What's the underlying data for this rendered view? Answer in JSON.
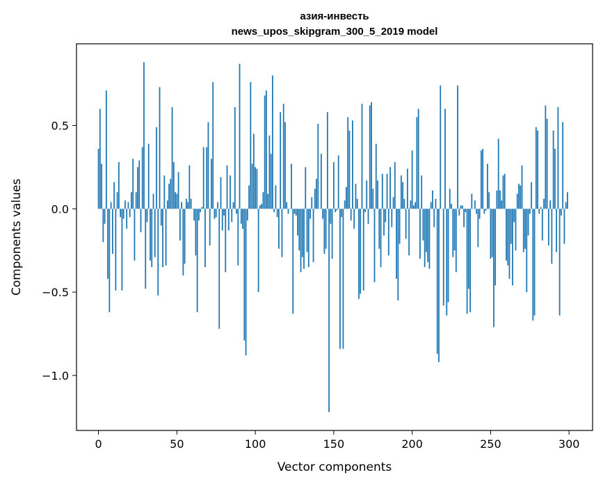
{
  "chart_data": {
    "type": "bar",
    "title": "азия-инвесть",
    "subtitle": "news_upos_skipgram_300_5_2019 model",
    "xlabel": "Vector components",
    "ylabel": "Components values",
    "xlim": [
      -14,
      315
    ],
    "ylim": [
      -1.33,
      0.99
    ],
    "x_ticks": [
      0,
      50,
      100,
      150,
      200,
      250,
      300
    ],
    "x_tick_labels": [
      "0",
      "50",
      "100",
      "150",
      "200",
      "250",
      "300"
    ],
    "y_ticks": [
      0.5,
      0.0,
      -0.5,
      -1.0
    ],
    "y_tick_labels": [
      "0.5",
      "0.0",
      "−0.5",
      "−1.0"
    ],
    "grid": false,
    "legend": "none",
    "bar_color": "#1f77b4",
    "series": [
      {
        "values": [
          0.36,
          0.6,
          0.27,
          -0.2,
          -0.09,
          0.71,
          -0.42,
          -0.62,
          0.04,
          -0.27,
          0.16,
          -0.49,
          0.1,
          0.28,
          -0.05,
          -0.49,
          -0.06,
          0.05,
          -0.12,
          0.04,
          -0.05,
          0.1,
          0.3,
          -0.31,
          0.1,
          0.25,
          0.29,
          -0.14,
          0.37,
          0.88,
          -0.48,
          -0.08,
          0.39,
          -0.31,
          -0.35,
          0.09,
          -0.29,
          0.49,
          -0.52,
          0.73,
          -0.1,
          -0.35,
          0.2,
          -0.34,
          0.05,
          0.15,
          0.18,
          0.61,
          0.28,
          0.1,
          0.09,
          0.22,
          -0.19,
          0.04,
          -0.4,
          -0.33,
          0.06,
          0.04,
          0.26,
          0.06,
          0.0,
          -0.07,
          -0.28,
          -0.62,
          -0.07,
          -0.02,
          0.01,
          0.37,
          -0.35,
          0.37,
          0.52,
          -0.22,
          0.3,
          0.76,
          -0.06,
          -0.05,
          0.04,
          -0.72,
          0.19,
          -0.13,
          -0.04,
          -0.38,
          0.26,
          -0.13,
          0.2,
          -0.08,
          0.04,
          0.61,
          -0.03,
          -0.34,
          0.87,
          -0.09,
          -0.12,
          -0.79,
          -0.88,
          -0.07,
          0.14,
          0.76,
          0.27,
          0.45,
          0.25,
          0.24,
          -0.5,
          0.02,
          0.03,
          0.1,
          0.68,
          0.71,
          0.09,
          0.44,
          0.33,
          0.8,
          -0.02,
          0.14,
          -0.05,
          -0.24,
          0.58,
          -0.29,
          0.63,
          0.52,
          0.04,
          -0.03,
          0.0,
          0.27,
          -0.63,
          -0.03,
          -0.04,
          -0.16,
          -0.25,
          -0.38,
          -0.29,
          -0.36,
          0.25,
          -0.26,
          -0.35,
          -0.06,
          0.07,
          -0.32,
          0.12,
          0.18,
          0.51,
          0.0,
          0.33,
          -0.06,
          -0.27,
          -0.24,
          0.58,
          -1.22,
          -0.09,
          -0.3,
          0.28,
          -0.02,
          -0.01,
          0.32,
          -0.84,
          -0.05,
          -0.84,
          0.05,
          0.13,
          0.55,
          0.47,
          -0.07,
          0.53,
          -0.12,
          0.15,
          0.06,
          -0.54,
          -0.51,
          0.63,
          -0.49,
          -0.02,
          0.17,
          -0.09,
          0.62,
          0.64,
          0.12,
          -0.44,
          0.39,
          0.17,
          -0.24,
          -0.35,
          0.21,
          -0.16,
          -0.08,
          0.21,
          -0.28,
          0.25,
          -0.11,
          0.07,
          0.28,
          -0.42,
          -0.55,
          -0.21,
          0.2,
          0.16,
          0.06,
          -0.18,
          0.24,
          -0.28,
          0.05,
          0.35,
          0.02,
          0.04,
          0.55,
          0.6,
          -0.3,
          0.2,
          -0.19,
          -0.35,
          -0.26,
          -0.32,
          -0.36,
          0.04,
          0.11,
          -0.11,
          0.06,
          -0.87,
          -0.92,
          0.74,
          0.0,
          -0.58,
          0.6,
          -0.64,
          -0.56,
          0.12,
          0.03,
          -0.29,
          -0.25,
          -0.38,
          0.74,
          -0.04,
          0.02,
          0.02,
          -0.11,
          -0.02,
          -0.63,
          -0.48,
          -0.62,
          0.09,
          0.0,
          0.05,
          -0.03,
          -0.23,
          -0.06,
          0.35,
          0.36,
          -0.03,
          -0.01,
          0.27,
          0.1,
          -0.3,
          -0.29,
          -0.71,
          -0.46,
          0.11,
          0.42,
          0.11,
          0.05,
          0.2,
          0.21,
          -0.31,
          -0.34,
          -0.42,
          -0.21,
          -0.46,
          -0.08,
          -0.25,
          0.09,
          0.15,
          0.14,
          0.26,
          -0.26,
          -0.24,
          -0.5,
          -0.16,
          -0.03,
          0.16,
          -0.67,
          -0.64,
          0.49,
          0.47,
          -0.03,
          0.01,
          -0.19,
          0.06,
          0.62,
          0.54,
          -0.22,
          0.05,
          -0.33,
          0.47,
          0.36,
          -0.26,
          0.61,
          -0.64,
          -0.04,
          0.52,
          -0.21,
          0.04,
          0.1
        ]
      }
    ]
  }
}
